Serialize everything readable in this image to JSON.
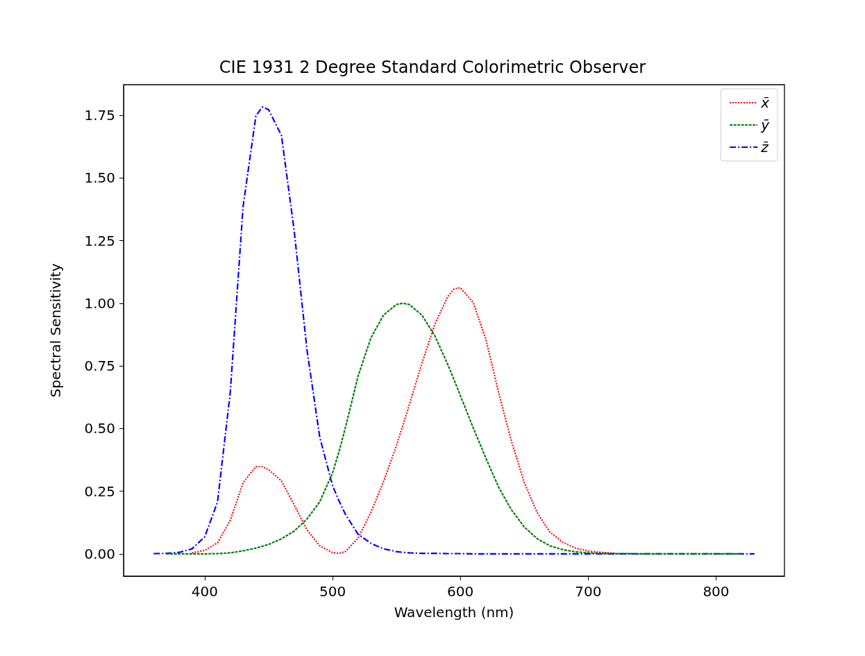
{
  "chart_data": {
    "type": "line",
    "title": "CIE 1931 2 Degree Standard Colorimetric Observer",
    "xlabel": "Wavelength (nm)",
    "ylabel": "Spectral Sensitivity",
    "x": [
      360,
      370,
      380,
      390,
      400,
      410,
      420,
      430,
      440,
      445,
      450,
      460,
      470,
      480,
      490,
      500,
      505,
      510,
      520,
      530,
      540,
      550,
      555,
      560,
      570,
      580,
      590,
      595,
      600,
      610,
      620,
      630,
      640,
      650,
      660,
      670,
      680,
      690,
      700,
      710,
      720,
      730,
      740,
      750,
      760,
      770,
      780,
      790,
      800,
      810,
      820,
      830
    ],
    "series": [
      {
        "name": "x̄",
        "color": "#ff0000",
        "line_style": "dotted",
        "values": [
          null,
          null,
          null,
          0.004,
          0.014,
          0.044,
          0.134,
          0.284,
          0.348,
          0.348,
          0.336,
          0.291,
          0.195,
          0.096,
          0.032,
          0.005,
          0.002,
          0.009,
          0.063,
          0.166,
          0.29,
          0.433,
          0.512,
          0.595,
          0.762,
          0.916,
          1.026,
          1.057,
          1.062,
          1.003,
          0.854,
          0.642,
          0.448,
          0.284,
          0.165,
          0.087,
          0.047,
          0.023,
          0.011,
          0.006,
          0.003,
          null,
          null,
          null,
          null,
          null,
          null,
          null,
          null,
          null,
          null,
          null
        ]
      },
      {
        "name": "ȳ",
        "color": "#008000",
        "line_style": "dashed",
        "values": [
          null,
          0.0,
          0.0,
          0.0,
          0.0,
          0.001,
          0.004,
          0.012,
          0.023,
          0.03,
          0.038,
          0.06,
          0.091,
          0.139,
          0.208,
          0.323,
          0.407,
          0.503,
          0.71,
          0.862,
          0.954,
          0.995,
          1.0,
          0.995,
          0.952,
          0.87,
          0.757,
          0.695,
          0.631,
          0.503,
          0.381,
          0.265,
          0.175,
          0.107,
          0.061,
          0.032,
          0.017,
          0.008,
          0.004,
          0.002,
          0.001,
          0.001,
          0.0,
          0.0,
          0.0,
          0.0,
          0.0,
          0.0,
          0.0,
          0.0,
          0.0,
          null
        ]
      },
      {
        "name": "z̄",
        "color": "#0000ff",
        "line_style": "dashdot",
        "values": [
          0.001,
          0.002,
          0.006,
          0.02,
          0.068,
          0.207,
          0.646,
          1.386,
          1.747,
          1.783,
          1.772,
          1.669,
          1.288,
          0.813,
          0.465,
          0.272,
          0.212,
          0.158,
          0.078,
          0.042,
          0.02,
          0.009,
          0.006,
          0.004,
          0.002,
          0.002,
          0.001,
          0.001,
          0.001,
          0.0,
          0.0,
          0.0,
          0.0,
          0.0,
          0.0,
          0.0,
          0.0,
          0.0,
          0.0,
          0.0,
          0.0,
          0.0,
          0.0,
          0.0,
          0.0,
          0.0,
          0.0,
          0.0,
          0.0,
          0.0,
          0.0,
          0.0
        ]
      }
    ],
    "xlim": [
      336.5,
      853.5
    ],
    "xticks": [
      400,
      500,
      600,
      700,
      800
    ],
    "ylim": [
      -0.089,
      1.872
    ],
    "yticks": [
      {
        "value": 0,
        "label": "0.00"
      },
      0.25,
      {
        "value": 0.5,
        "label": "0.50"
      },
      0.75,
      {
        "value": 1,
        "label": "1.00"
      },
      1.25,
      {
        "value": 1.5,
        "label": "1.50"
      },
      1.75
    ],
    "grid": false,
    "legend": "top right",
    "marker": "none"
  }
}
